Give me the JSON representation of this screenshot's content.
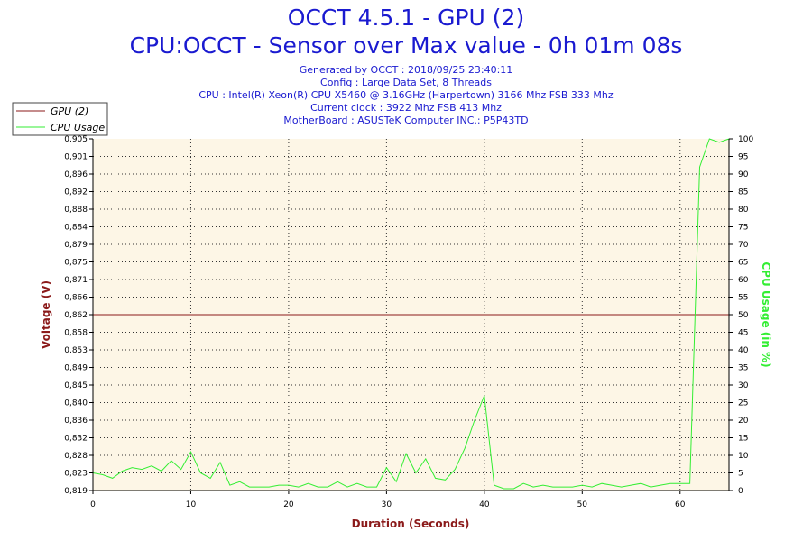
{
  "header": {
    "title": "OCCT 4.5.1 - GPU (2)",
    "subtitle": "CPU:OCCT - Sensor over Max value - 0h 01m 08s",
    "info": [
      "Generated by OCCT : 2018/09/25 23:40:11",
      "Config : Large Data Set, 8 Threads",
      "CPU : Intel(R) Xeon(R) CPU X5460 @ 3.16GHz (Harpertown) 3166 Mhz FSB 333 Mhz",
      "Current clock : 3922 Mhz FSB 413 Mhz",
      "MotherBoard : ASUSTeK Computer INC.: P5P43TD"
    ]
  },
  "chart_data": {
    "type": "line",
    "xlabel": "Duration (Seconds)",
    "ylabel_left": "Voltage (V)",
    "ylabel_right": "CPU Usage (in %)",
    "xlim": [
      0,
      65
    ],
    "ylim_left": [
      0.819,
      0.905
    ],
    "ylim_right": [
      0,
      100
    ],
    "x_ticks": [
      0,
      10,
      20,
      30,
      40,
      50,
      60
    ],
    "y_left_ticks": [
      "0,905",
      "0,901",
      "0,896",
      "0,892",
      "0,888",
      "0,884",
      "0,879",
      "0,875",
      "0,871",
      "0,866",
      "0,862",
      "0,858",
      "0,853",
      "0,849",
      "0,845",
      "0,840",
      "0,836",
      "0,832",
      "0,828",
      "0,823",
      "0,819"
    ],
    "y_right_ticks": [
      100,
      95,
      90,
      85,
      80,
      75,
      70,
      65,
      60,
      55,
      50,
      45,
      40,
      35,
      30,
      25,
      20,
      15,
      10,
      5,
      0
    ],
    "grid": true,
    "legend_position": "top-left",
    "series": [
      {
        "name": "GPU (2)",
        "axis": "left",
        "color": "#8b1a1a",
        "x": [
          0,
          65
        ],
        "y": [
          0.862,
          0.862
        ]
      },
      {
        "name": "CPU Usage",
        "axis": "right",
        "color": "#33ee33",
        "x": [
          0,
          1,
          2,
          3,
          4,
          5,
          6,
          7,
          8,
          9,
          10,
          11,
          12,
          13,
          14,
          15,
          16,
          17,
          18,
          19,
          20,
          21,
          22,
          23,
          24,
          25,
          26,
          27,
          28,
          29,
          30,
          31,
          32,
          33,
          34,
          35,
          36,
          37,
          38,
          39,
          40,
          41,
          42,
          43,
          44,
          45,
          46,
          47,
          48,
          49,
          50,
          51,
          52,
          53,
          54,
          55,
          56,
          57,
          58,
          59,
          60,
          61,
          62,
          63,
          64,
          65
        ],
        "y": [
          5,
          4.5,
          3.5,
          5.5,
          6.5,
          6,
          7,
          5.5,
          8.5,
          6,
          11,
          5,
          3.5,
          8,
          1.5,
          2.5,
          1,
          1,
          1,
          1.5,
          1.5,
          1,
          2,
          1,
          1,
          2.5,
          1,
          2,
          1,
          1,
          6.5,
          2.5,
          10.5,
          5,
          9,
          3.5,
          3,
          6,
          12,
          20,
          27,
          1.5,
          0.5,
          0.5,
          2,
          1,
          1.5,
          1,
          1,
          1,
          1.5,
          1,
          2,
          1.5,
          1,
          1.5,
          2,
          1,
          1.5,
          2,
          2,
          2,
          92,
          100,
          99,
          100
        ]
      }
    ]
  }
}
